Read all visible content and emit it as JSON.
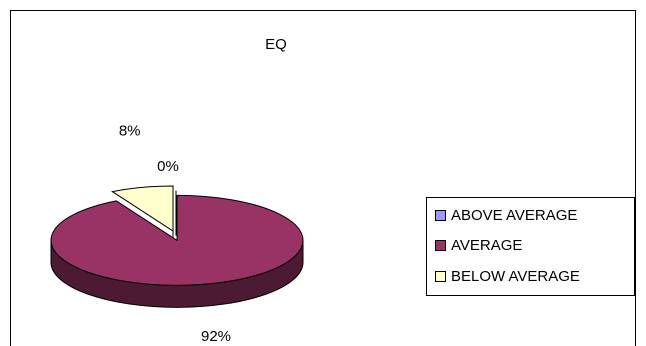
{
  "chart_data": {
    "type": "pie",
    "title": "EQ",
    "slices": [
      {
        "label": "ABOVE AVERAGE",
        "value": 0,
        "display": "0%",
        "color": "#9999ff"
      },
      {
        "label": "AVERAGE",
        "value": 92,
        "display": "92%",
        "color": "#993366"
      },
      {
        "label": "BELOW AVERAGE",
        "value": 8,
        "display": "8%",
        "color": "#ffffcc"
      }
    ],
    "legend_position": "right",
    "style": "3d-exploded"
  }
}
